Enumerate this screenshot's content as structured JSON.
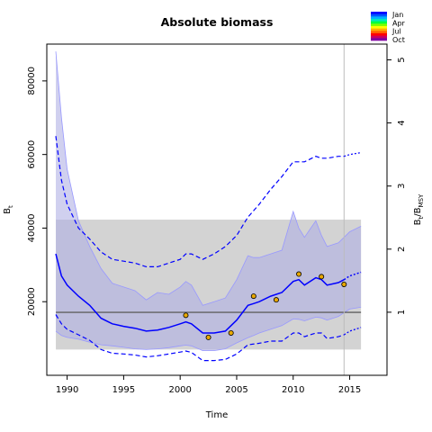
{
  "chart_data": {
    "type": "line",
    "title": "Absolute biomass",
    "xlabel": "Time",
    "ylabel_left": "B",
    "ylabel_left_sub": "t",
    "ylabel_right": "B",
    "ylabel_right_sub": "t",
    "ylabel_right_tail": "/B",
    "ylabel_right_tail_sub": "MSY",
    "xlim": [
      1988.2,
      2018.3
    ],
    "ylim": [
      0,
      90000
    ],
    "ylim_right": [
      0,
      5.25
    ],
    "x_ticks": [
      1990,
      1995,
      2000,
      2005,
      2010,
      2015
    ],
    "y_ticks": [
      20000,
      40000,
      60000,
      80000
    ],
    "y_ticks_right": [
      1,
      2,
      3,
      4,
      5
    ],
    "colors": {
      "median": "#0000ff",
      "ci_fill": "#b0b0e4",
      "ci_line": "#9898ff",
      "bmsy_band": "#d3d3d3",
      "bmsy_line": "#606060",
      "obs_fill": "#e8a800",
      "vline": "#bcbcbc"
    },
    "bmsy_band": [
      7000,
      42300
    ],
    "bmsy_line": 17100,
    "vline_x": 2014.5,
    "forecast_start": 2014.5,
    "series": [
      {
        "role": "median",
        "x": [
          1989,
          1989.5,
          1990,
          1991,
          1992,
          1993,
          1994,
          1995,
          1996,
          1997,
          1998,
          1999,
          2000,
          2000.5,
          2001,
          2002,
          2003,
          2004,
          2005,
          2006,
          2006.5,
          2007,
          2008,
          2009,
          2010,
          2010.5,
          2011,
          2012,
          2012.5,
          2013,
          2014,
          2014.5,
          2015,
          2016
        ],
        "y": [
          33000,
          27000,
          24500,
          21500,
          19000,
          15500,
          14000,
          13300,
          12800,
          12000,
          12300,
          13000,
          14000,
          14500,
          14000,
          11500,
          11500,
          12000,
          15000,
          19000,
          19500,
          20000,
          21500,
          22500,
          25500,
          26000,
          24500,
          26500,
          26000,
          24500,
          25200,
          26000,
          27000,
          28000
        ]
      },
      {
        "role": "ci_upper",
        "x": [
          1989,
          1989.5,
          1990,
          1991,
          1992,
          1993,
          1994,
          1995,
          1996,
          1997,
          1998,
          1999,
          2000,
          2000.5,
          2001,
          2002,
          2003,
          2004,
          2005,
          2006,
          2006.5,
          2007,
          2008,
          2009,
          2010,
          2010.5,
          2011,
          2012,
          2012.5,
          2013,
          2014,
          2014.5,
          2015,
          2016
        ],
        "y": [
          88000,
          70000,
          56000,
          42000,
          35000,
          29000,
          25000,
          24000,
          23000,
          20500,
          22500,
          22000,
          24000,
          25500,
          24500,
          19000,
          20000,
          21000,
          26000,
          32500,
          32000,
          32000,
          33000,
          34000,
          44500,
          40000,
          37500,
          42000,
          38000,
          35000,
          36000,
          37500,
          39000,
          40500
        ]
      },
      {
        "role": "ci_lower",
        "x": [
          1989,
          1989.5,
          1990,
          1991,
          1992,
          1993,
          1994,
          1995,
          1996,
          1997,
          1998,
          1999,
          2000,
          2000.5,
          2001,
          2002,
          2003,
          2004,
          2005,
          2006,
          2006.5,
          2007,
          2008,
          2009,
          2010,
          2010.5,
          2011,
          2012,
          2012.5,
          2013,
          2014,
          2014.5,
          2015,
          2016
        ],
        "y": [
          12000,
          10800,
          10300,
          9800,
          9000,
          8300,
          8000,
          7600,
          7200,
          7000,
          7200,
          7500,
          8000,
          8200,
          8000,
          6700,
          6700,
          7200,
          8800,
          10200,
          10800,
          11500,
          12500,
          13500,
          15300,
          15200,
          14800,
          15800,
          15600,
          15000,
          16000,
          17000,
          18000,
          18500
        ]
      },
      {
        "role": "predint_upper",
        "x": [
          1989,
          1989.5,
          1990,
          1991,
          1992,
          1993,
          1994,
          1995,
          1996,
          1997,
          1998,
          1999,
          2000,
          2000.5,
          2001,
          2002,
          2003,
          2004,
          2005,
          2006,
          2007,
          2008,
          2009,
          2010,
          2010.5,
          2011,
          2012,
          2012.5,
          2013,
          2014,
          2014.5,
          2015,
          2016
        ],
        "y": [
          65000,
          53000,
          46500,
          40000,
          37000,
          33500,
          31500,
          31000,
          30500,
          29500,
          29500,
          30500,
          31500,
          33000,
          33000,
          31500,
          33000,
          35000,
          38000,
          43000,
          46500,
          50500,
          54000,
          58000,
          58000,
          58000,
          59500,
          59000,
          59000,
          59500,
          59500,
          60000,
          60500
        ]
      },
      {
        "role": "predint_lower",
        "x": [
          1989,
          1989.5,
          1990,
          1991,
          1992,
          1993,
          1994,
          1995,
          1996,
          1997,
          1998,
          1999,
          2000,
          2000.5,
          2001,
          2002,
          2003,
          2004,
          2005,
          2006,
          2007,
          2008,
          2009,
          2010,
          2010.5,
          2011,
          2012,
          2012.5,
          2013,
          2014,
          2014.5,
          2015,
          2016
        ],
        "y": [
          16500,
          14000,
          12500,
          11000,
          9500,
          7000,
          6000,
          5800,
          5500,
          5000,
          5300,
          5800,
          6300,
          6600,
          6200,
          4000,
          4000,
          4300,
          5800,
          8300,
          8700,
          9300,
          9300,
          11500,
          11500,
          10500,
          11500,
          11500,
          10000,
          10500,
          11000,
          12000,
          13000
        ]
      }
    ],
    "observations": {
      "x": [
        2000.5,
        2002.5,
        2004.5,
        2006.5,
        2008.5,
        2010.5,
        2012.5,
        2014.5
      ],
      "y": [
        16300,
        10300,
        11500,
        21500,
        20500,
        27500,
        26800,
        24700
      ]
    },
    "legend": {
      "placement": "top-right",
      "labels": [
        "Jan",
        "Apr",
        "Jul",
        "Oct"
      ],
      "colors": [
        "#0000ff",
        "#0055ff",
        "#00b0ff",
        "#00e8c0",
        "#00ff40",
        "#80ff00",
        "#ffff00",
        "#ffb000",
        "#ff6000",
        "#ff0000",
        "#c80060",
        "#8000a0"
      ]
    }
  }
}
